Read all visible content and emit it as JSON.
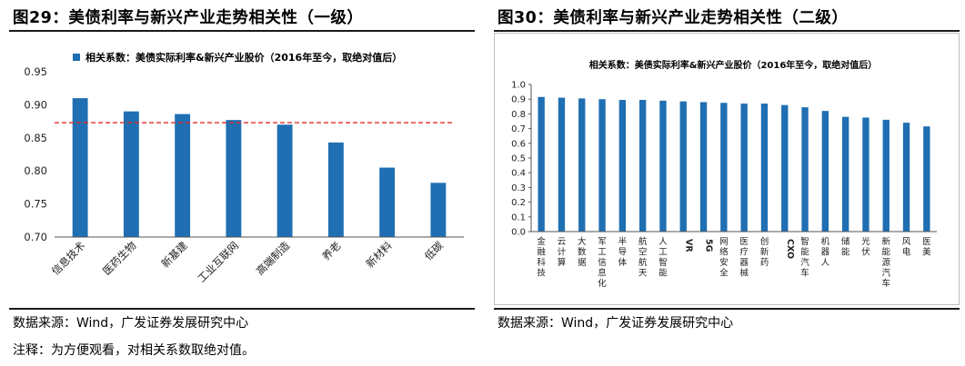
{
  "left": {
    "title": "图29：美债利率与新兴产业走势相关性（一级）",
    "source": "数据来源：Wind，广发证券发展研究中心",
    "note": "注释：为方便观看，对相关系数取绝对值。",
    "chart_data": {
      "type": "bar",
      "legend": "相关系数：美债实际利率&新兴产业股价（2016年至今，取绝对值后）",
      "legend_position": "top-left",
      "categories": [
        "信息技术",
        "医药生物",
        "新基建",
        "工业互联网",
        "高端制造",
        "养老",
        "新材料",
        "低碳"
      ],
      "values": [
        0.91,
        0.89,
        0.886,
        0.877,
        0.87,
        0.843,
        0.805,
        0.782
      ],
      "reference_line": 0.873,
      "ylim": [
        0.7,
        0.95
      ],
      "yticks": [
        "0.70",
        "0.75",
        "0.80",
        "0.85",
        "0.90",
        "0.95"
      ],
      "grid": false,
      "bar_color": "#1f6fb2",
      "line_color": "#e02a2a"
    }
  },
  "right": {
    "title": "图30：美债利率与新兴产业走势相关性（二级）",
    "source": "数据来源：Wind，广发证券发展研究中心",
    "chart_data": {
      "type": "bar",
      "legend": "相关系数：美债实际利率&新兴产业股价（2016年至今，取绝对值后）",
      "legend_position": "top",
      "categories": [
        "金融科技",
        "云计算",
        "大数据",
        "军工信息化",
        "半导体",
        "航空航天",
        "人工智能",
        "VR",
        "5G",
        "网络安全",
        "医疗器械",
        "创新药",
        "CXO",
        "智能汽车",
        "机器人",
        "储能",
        "光伏",
        "新能源汽车",
        "风电",
        "医美"
      ],
      "values": [
        0.915,
        0.91,
        0.905,
        0.9,
        0.895,
        0.895,
        0.89,
        0.885,
        0.88,
        0.875,
        0.87,
        0.87,
        0.86,
        0.845,
        0.82,
        0.78,
        0.775,
        0.76,
        0.74,
        0.715
      ],
      "ylim": [
        0,
        1.0
      ],
      "yticks": [
        "0.0",
        "0.1",
        "0.2",
        "0.3",
        "0.4",
        "0.5",
        "0.6",
        "0.7",
        "0.8",
        "0.9",
        "1.0"
      ],
      "grid": false,
      "bar_color": "#1f6fb2"
    }
  }
}
